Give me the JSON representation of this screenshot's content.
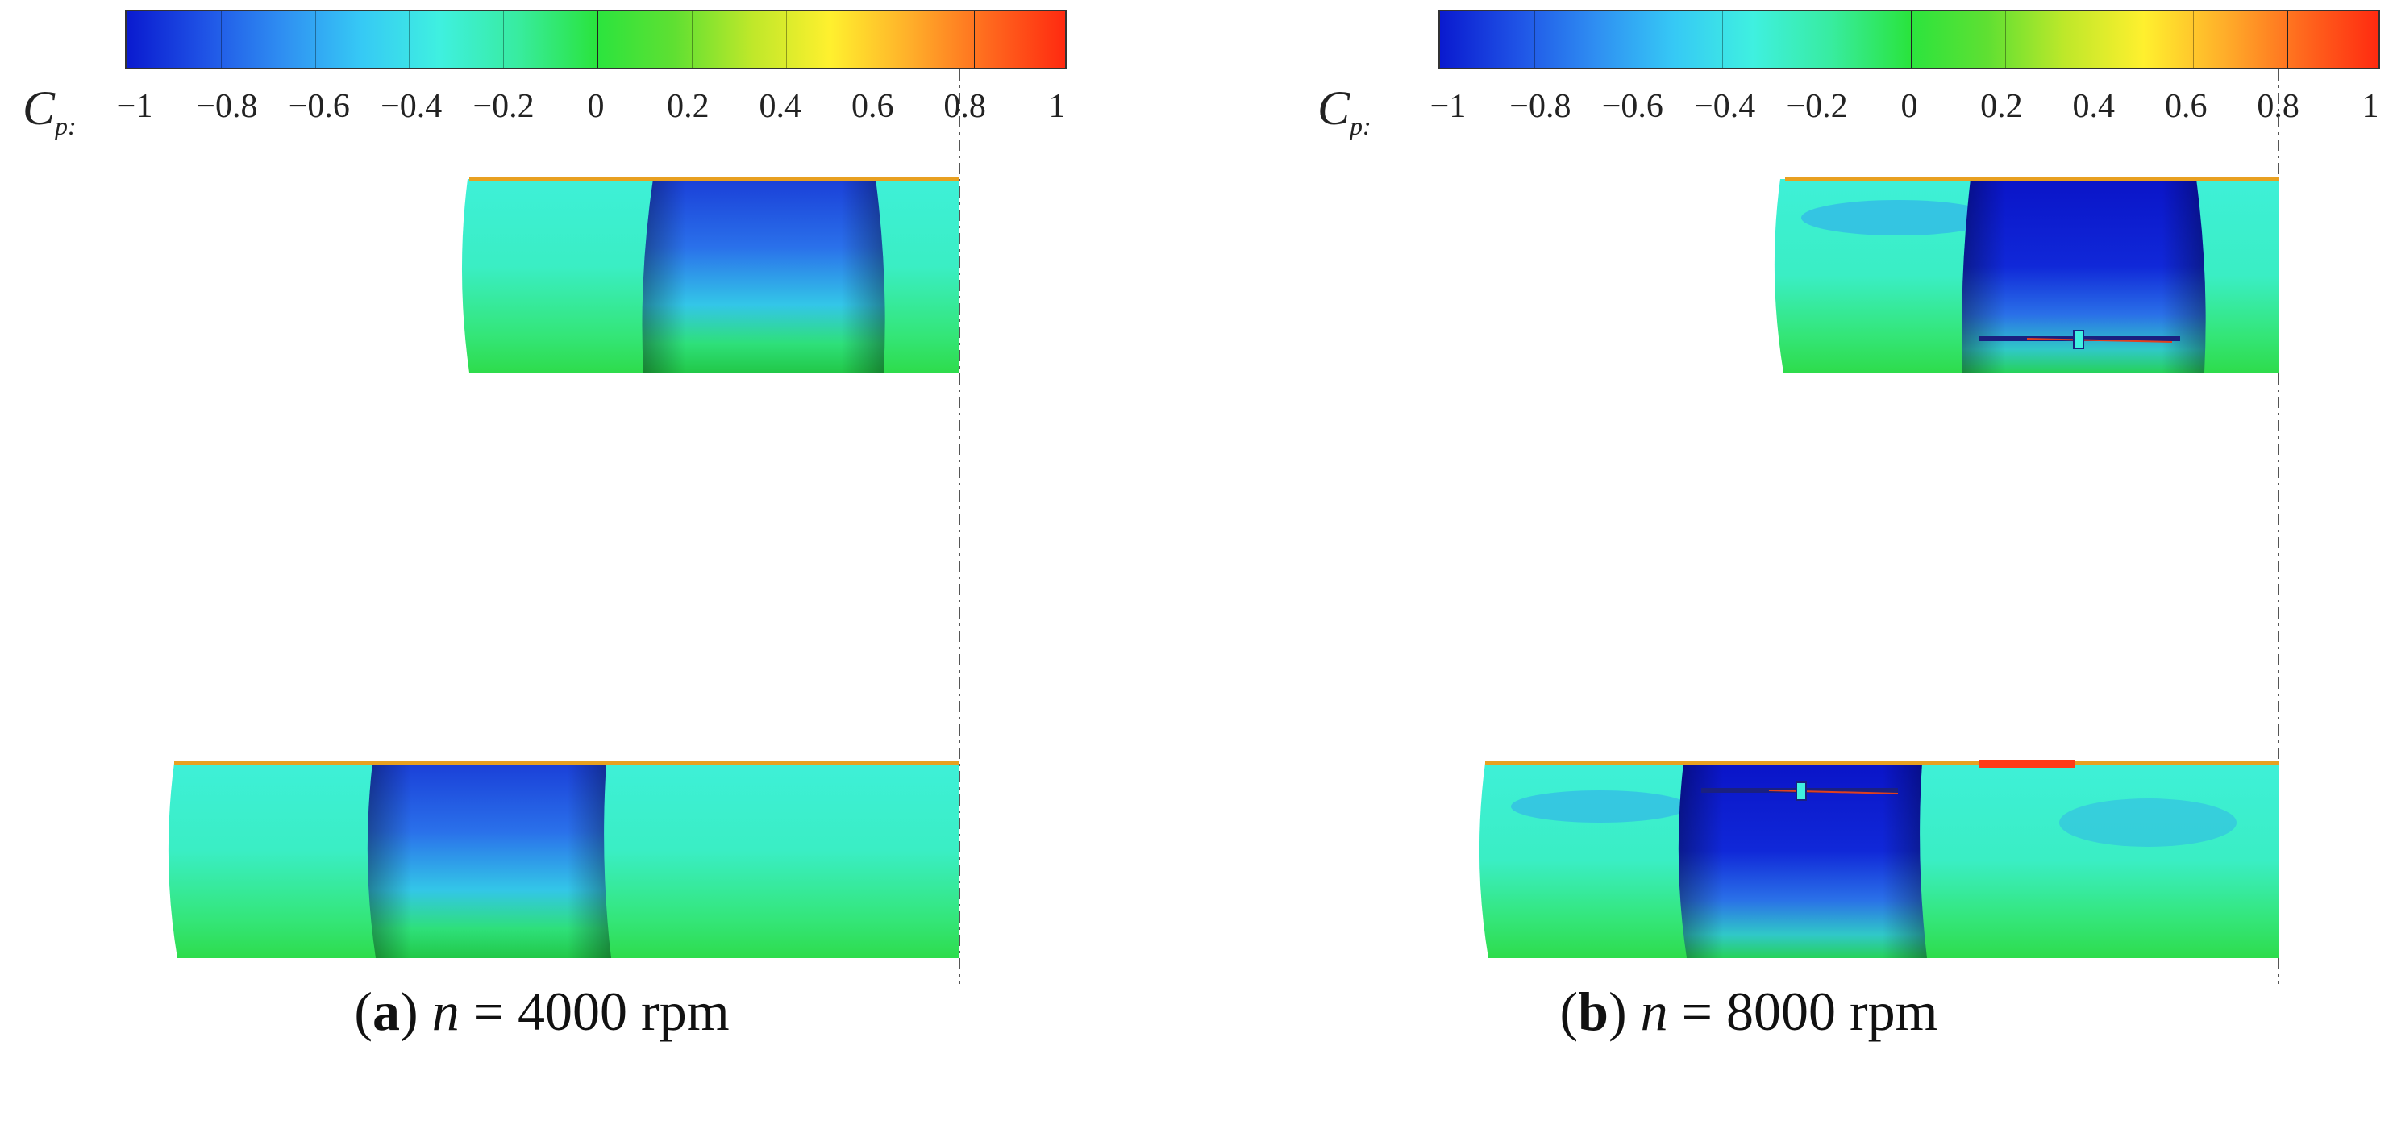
{
  "colorbar": {
    "label": "C",
    "label_sub": "p:",
    "ticks": [
      "−1",
      "−0.8",
      "−0.6",
      "−0.4",
      "−0.2",
      "0",
      "0.2",
      "0.4",
      "0.6",
      "0.8",
      "1"
    ],
    "colors": [
      "#0a1acf",
      "#1f53e6",
      "#2f8ff2",
      "#36c9f5",
      "#3ff0e0",
      "#38eca0",
      "#2ae43e",
      "#5fe032",
      "#bfe82a",
      "#fff02e",
      "#ffb02a",
      "#ff6a1e",
      "#ff2a10"
    ]
  },
  "panels": [
    {
      "id": "a",
      "caption_letter": "a",
      "caption_var": "n",
      "caption_rest": " = 4000 rpm"
    },
    {
      "id": "b",
      "caption_letter": "b",
      "caption_var": "n",
      "caption_rest": " = 8000 rpm"
    }
  ]
}
